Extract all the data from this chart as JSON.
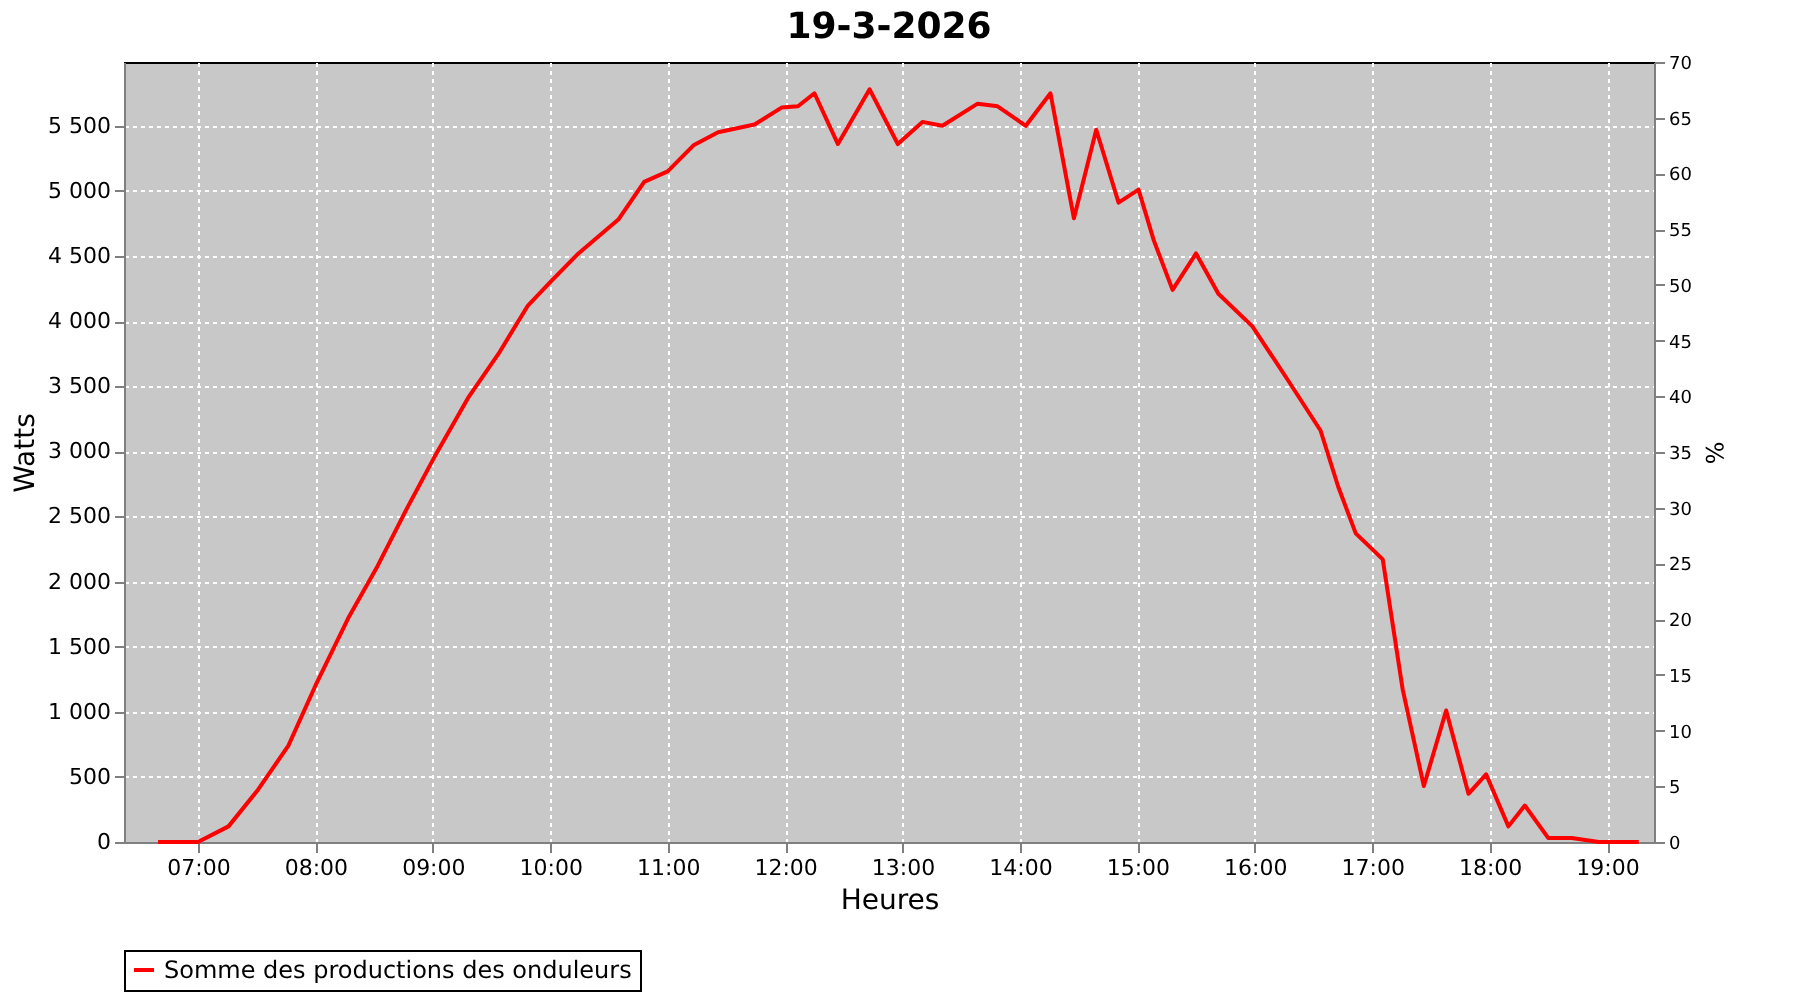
{
  "chart_data": {
    "type": "line",
    "title": "19-3-2026",
    "xlabel": "Heures",
    "ylabel": "Watts",
    "y2label": "%",
    "x": [
      6.66,
      7.0,
      7.26,
      7.51,
      7.77,
      8.0,
      8.28,
      8.53,
      8.79,
      9.01,
      9.3,
      9.56,
      9.81,
      10.0,
      10.24,
      10.58,
      10.8,
      11.0,
      11.22,
      11.43,
      11.74,
      11.97,
      12.11,
      12.25,
      12.45,
      12.72,
      12.96,
      13.17,
      13.34,
      13.64,
      13.81,
      14.05,
      14.26,
      14.46,
      14.65,
      14.84,
      15.01,
      15.14,
      15.3,
      15.5,
      15.69,
      15.98,
      16.28,
      16.56,
      16.71,
      16.86,
      17.09,
      17.26,
      17.44,
      17.63,
      17.82,
      17.97,
      18.16,
      18.3,
      18.5,
      18.7,
      18.93,
      19.27
    ],
    "series": [
      {
        "name": "Somme des productions des onduleurs",
        "color": "#ff0000",
        "values": [
          0,
          0,
          120,
          400,
          740,
          1200,
          1720,
          2120,
          2580,
          2950,
          3410,
          3750,
          4120,
          4300,
          4520,
          4780,
          5070,
          5150,
          5350,
          5450,
          5510,
          5640,
          5650,
          5750,
          5360,
          5780,
          5360,
          5530,
          5500,
          5670,
          5650,
          5500,
          5750,
          4790,
          5470,
          4910,
          5010,
          4620,
          4240,
          4520,
          4210,
          3960,
          3550,
          3160,
          2730,
          2370,
          2170,
          1170,
          430,
          1010,
          370,
          520,
          120,
          280,
          30,
          30,
          0,
          0
        ]
      }
    ],
    "xlim": [
      6.37,
      19.4
    ],
    "xticks": [
      {
        "value": 7,
        "label": "07:00"
      },
      {
        "value": 8,
        "label": "08:00"
      },
      {
        "value": 9,
        "label": "09:00"
      },
      {
        "value": 10,
        "label": "10:00"
      },
      {
        "value": 11,
        "label": "11:00"
      },
      {
        "value": 12,
        "label": "12:00"
      },
      {
        "value": 13,
        "label": "13:00"
      },
      {
        "value": 14,
        "label": "14:00"
      },
      {
        "value": 15,
        "label": "15:00"
      },
      {
        "value": 16,
        "label": "16:00"
      },
      {
        "value": 17,
        "label": "17:00"
      },
      {
        "value": 18,
        "label": "18:00"
      },
      {
        "value": 19,
        "label": "19:00"
      }
    ],
    "ylim": [
      0,
      5990
    ],
    "yticks": [
      0,
      500,
      {
        "value": 1000,
        "label": "1 000"
      },
      {
        "value": 1500,
        "label": "1 500"
      },
      {
        "value": 2000,
        "label": "2 000"
      },
      {
        "value": 2500,
        "label": "2 500"
      },
      {
        "value": 3000,
        "label": "3 000"
      },
      {
        "value": 3500,
        "label": "3 500"
      },
      {
        "value": 4000,
        "label": "4 000"
      },
      {
        "value": 4500,
        "label": "4 500"
      },
      {
        "value": 5000,
        "label": "5 000"
      },
      {
        "value": 5500,
        "label": "5 500"
      }
    ],
    "y2lim": [
      0,
      70
    ],
    "y2ticks": [
      0,
      5,
      10,
      15,
      20,
      25,
      30,
      35,
      40,
      45,
      50,
      55,
      60,
      65,
      70
    ],
    "grid": true,
    "legend": "bottom",
    "marker": "none",
    "line_style": "solid"
  }
}
